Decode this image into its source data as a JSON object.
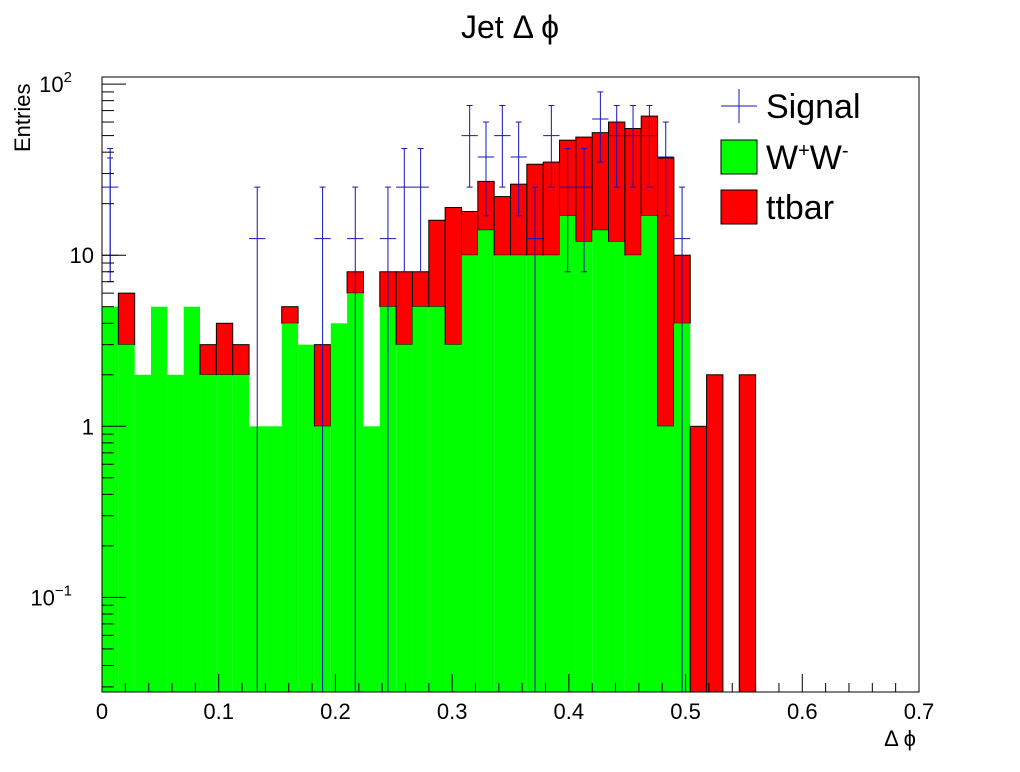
{
  "chart_data": {
    "type": "bar",
    "title": "Jet Δ ϕ",
    "xlabel": "Δ ϕ",
    "ylabel": "Entries",
    "xlim": [
      0,
      0.7
    ],
    "ylim": [
      0.028,
      110
    ],
    "log_y": true,
    "stacked": true,
    "bin_width": 0.014,
    "x_ticks": [
      "0",
      "0.1",
      "0.2",
      "0.3",
      "0.4",
      "0.5",
      "0.6",
      "0.7"
    ],
    "y_ticks": [
      {
        "base": "10",
        "exp": "−1",
        "value": 0.1
      },
      {
        "base": "1",
        "exp": "",
        "value": 1
      },
      {
        "base": "10",
        "exp": "",
        "value": 10
      },
      {
        "base": "10",
        "exp": "2",
        "value": 100
      }
    ],
    "legend_position": "top-right",
    "legend": [
      {
        "key": "signal",
        "label": "Signal",
        "sup1": "",
        "mid": "",
        "sup2": "",
        "color": "#1414b4"
      },
      {
        "key": "ww",
        "label": "W",
        "sup1": "+",
        "mid": "W",
        "sup2": "-",
        "color": "#00ff00"
      },
      {
        "key": "ttbar",
        "label": "ttbar",
        "sup1": "",
        "mid": "",
        "sup2": "",
        "color": "#ff0000"
      }
    ],
    "series": [
      {
        "name": "W+W-",
        "color": "#00ff00",
        "values": [
          5,
          3,
          2,
          5,
          2,
          5,
          2,
          2,
          2,
          1,
          1,
          4,
          3,
          1,
          4,
          6,
          1,
          5,
          3,
          5,
          5,
          3,
          10,
          14,
          10,
          10,
          10,
          10,
          17,
          12,
          14,
          12,
          10,
          17,
          1,
          4,
          0,
          0,
          0,
          0,
          0,
          0,
          0,
          0,
          0,
          0,
          0,
          0,
          0,
          0
        ]
      },
      {
        "name": "ttbar",
        "color": "#ff0000",
        "values": [
          0,
          3,
          0,
          0,
          0,
          0,
          1,
          2,
          1,
          0,
          0,
          1,
          0,
          2,
          0,
          2,
          0,
          3,
          5,
          3,
          11,
          16,
          8,
          13,
          12,
          16,
          24,
          25,
          30,
          37,
          38,
          48,
          45,
          48,
          36,
          6,
          1,
          2,
          0,
          2,
          0,
          0,
          0,
          0,
          0,
          0,
          0,
          0,
          0,
          0
        ]
      },
      {
        "name": "Signal",
        "color": "#1414b4",
        "type": "points",
        "points": [
          {
            "x": 0.007,
            "y": 25,
            "lo": 8,
            "hi": 42
          },
          {
            "x": 0.007,
            "y": 10,
            "lo": 7,
            "hi": 37
          },
          {
            "x": 0.133,
            "y": 12.5,
            "lo": 0,
            "hi": 25
          },
          {
            "x": 0.189,
            "y": 12.5,
            "lo": 0,
            "hi": 25
          },
          {
            "x": 0.217,
            "y": 12.5,
            "lo": 0,
            "hi": 25
          },
          {
            "x": 0.245,
            "y": 12.5,
            "lo": 0,
            "hi": 25
          },
          {
            "x": 0.259,
            "y": 25,
            "lo": 8,
            "hi": 42
          },
          {
            "x": 0.273,
            "y": 25,
            "lo": 8,
            "hi": 42
          },
          {
            "x": 0.315,
            "y": 50,
            "lo": 25,
            "hi": 75
          },
          {
            "x": 0.329,
            "y": 37.5,
            "lo": 17,
            "hi": 60
          },
          {
            "x": 0.343,
            "y": 50,
            "lo": 25,
            "hi": 75
          },
          {
            "x": 0.357,
            "y": 37.5,
            "lo": 17,
            "hi": 60
          },
          {
            "x": 0.371,
            "y": 12.5,
            "lo": 0,
            "hi": 25
          },
          {
            "x": 0.385,
            "y": 50,
            "lo": 25,
            "hi": 75
          },
          {
            "x": 0.399,
            "y": 25,
            "lo": 8,
            "hi": 42
          },
          {
            "x": 0.413,
            "y": 25,
            "lo": 8,
            "hi": 42
          },
          {
            "x": 0.427,
            "y": 62.5,
            "lo": 35,
            "hi": 90
          },
          {
            "x": 0.441,
            "y": 50,
            "lo": 25,
            "hi": 75
          },
          {
            "x": 0.455,
            "y": 50,
            "lo": 25,
            "hi": 75
          },
          {
            "x": 0.469,
            "y": 50,
            "lo": 25,
            "hi": 75
          },
          {
            "x": 0.483,
            "y": 37.5,
            "lo": 17,
            "hi": 60
          },
          {
            "x": 0.497,
            "y": 12.5,
            "lo": 0,
            "hi": 25
          }
        ]
      }
    ]
  }
}
